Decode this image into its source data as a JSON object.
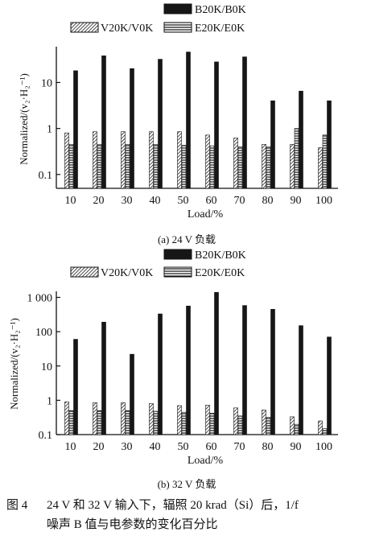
{
  "figure": {
    "caption_label": "图 4",
    "caption_line1": "24 V 和 32 V 输入下，辐照 20 krad（Si）后，1/f",
    "caption_line2": "噪声 B 值与电参数的变化百分比"
  },
  "colors": {
    "B": "#161616",
    "V": "#ffffff",
    "E": "#ffffff",
    "axis": "#111111"
  },
  "chart_data": [
    {
      "type": "bar",
      "caption": "(a) 24 V 负载",
      "xlabel": "Load/%",
      "ylabel": "Normalized/(v₂·H₂⁻¹)",
      "yscale": "log",
      "ylim": [
        0.05,
        60
      ],
      "yticks": [
        0.1,
        1,
        10
      ],
      "ytick_labels": [
        "0.1",
        "1",
        "10"
      ],
      "categories": [
        "10",
        "20",
        "30",
        "40",
        "50",
        "60",
        "70",
        "80",
        "90",
        "100"
      ],
      "legend_position": "top",
      "series": [
        {
          "name": "V20K/V0K",
          "values": [
            0.8,
            0.85,
            0.85,
            0.85,
            0.85,
            0.72,
            0.62,
            0.45,
            0.45,
            0.38
          ]
        },
        {
          "name": "E20K/E0K",
          "values": [
            0.45,
            0.45,
            0.45,
            0.45,
            0.43,
            0.42,
            0.4,
            0.4,
            1.0,
            0.72
          ]
        },
        {
          "name": "B20K/B0K",
          "values": [
            18,
            38,
            20,
            32,
            46,
            28,
            36,
            4,
            6.5,
            4
          ]
        }
      ]
    },
    {
      "type": "bar",
      "caption": "(b) 32 V 负载",
      "xlabel": "Load/%",
      "ylabel": "Normalized/(v₂·H₂⁻¹)",
      "yscale": "log",
      "ylim": [
        0.1,
        1500
      ],
      "yticks": [
        0.1,
        1,
        10,
        100,
        1000
      ],
      "ytick_labels": [
        "0.1",
        "1",
        "10",
        "100",
        "1 000"
      ],
      "categories": [
        "10",
        "20",
        "30",
        "40",
        "50",
        "60",
        "70",
        "80",
        "90",
        "100"
      ],
      "legend_position": "top",
      "series": [
        {
          "name": "V20K/V0K",
          "values": [
            0.9,
            0.85,
            0.85,
            0.8,
            0.7,
            0.72,
            0.6,
            0.52,
            0.33,
            0.25
          ]
        },
        {
          "name": "E20K/E0K",
          "values": [
            0.5,
            0.5,
            0.5,
            0.48,
            0.45,
            0.42,
            0.35,
            0.32,
            0.2,
            0.15
          ]
        },
        {
          "name": "B20K/B0K",
          "values": [
            60,
            190,
            22,
            330,
            560,
            1400,
            580,
            450,
            150,
            70
          ]
        }
      ]
    }
  ]
}
